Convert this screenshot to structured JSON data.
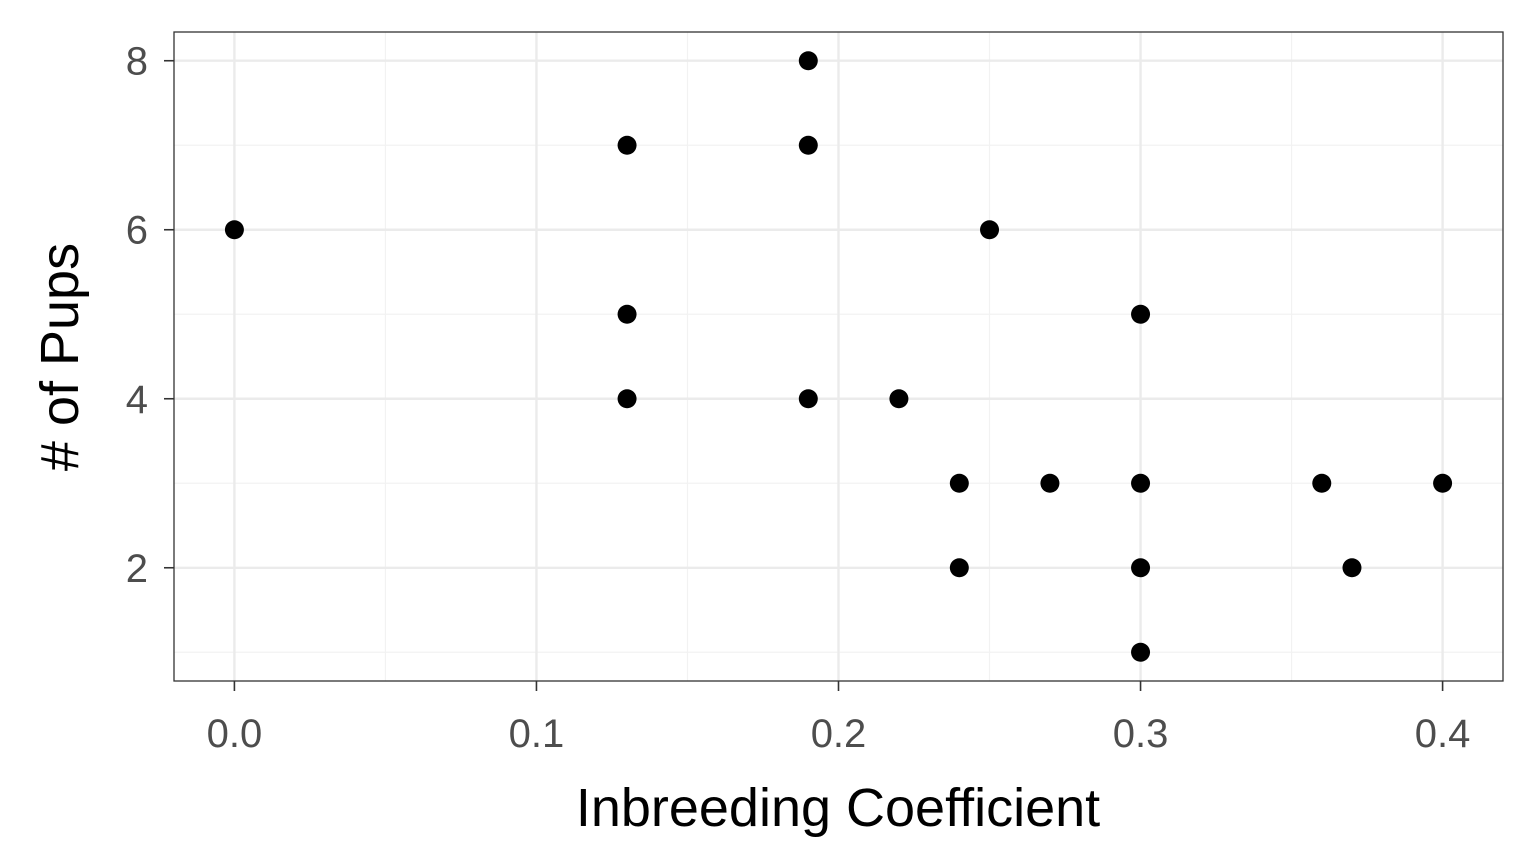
{
  "chart_data": {
    "type": "scatter",
    "title": "",
    "xlabel": "Inbreeding Coefficient",
    "ylabel": "# of Pups",
    "xlim": [
      -0.02,
      0.42
    ],
    "ylim": [
      0.66,
      8.34
    ],
    "x_ticks": [
      0.0,
      0.1,
      0.2,
      0.3,
      0.4
    ],
    "x_tick_labels": [
      "0.0",
      "0.1",
      "0.2",
      "0.3",
      "0.4"
    ],
    "y_ticks": [
      2,
      4,
      6,
      8
    ],
    "y_tick_labels": [
      "2",
      "4",
      "6",
      "8"
    ],
    "grid": true,
    "legend": "none",
    "colors": {
      "points": "#000000",
      "grid_major": "#ebebeb",
      "grid_minor": "#f2f2f2",
      "panel_border": "#333333",
      "tick_label": "#4d4d4d"
    },
    "points": [
      {
        "x": 0.0,
        "y": 6
      },
      {
        "x": 0.13,
        "y": 7
      },
      {
        "x": 0.13,
        "y": 5
      },
      {
        "x": 0.13,
        "y": 4
      },
      {
        "x": 0.19,
        "y": 8
      },
      {
        "x": 0.19,
        "y": 7
      },
      {
        "x": 0.19,
        "y": 4
      },
      {
        "x": 0.22,
        "y": 4
      },
      {
        "x": 0.24,
        "y": 3
      },
      {
        "x": 0.24,
        "y": 2
      },
      {
        "x": 0.25,
        "y": 6
      },
      {
        "x": 0.27,
        "y": 3
      },
      {
        "x": 0.3,
        "y": 5
      },
      {
        "x": 0.3,
        "y": 3
      },
      {
        "x": 0.3,
        "y": 2
      },
      {
        "x": 0.3,
        "y": 1
      },
      {
        "x": 0.36,
        "y": 3
      },
      {
        "x": 0.37,
        "y": 2
      },
      {
        "x": 0.4,
        "y": 3
      }
    ]
  }
}
